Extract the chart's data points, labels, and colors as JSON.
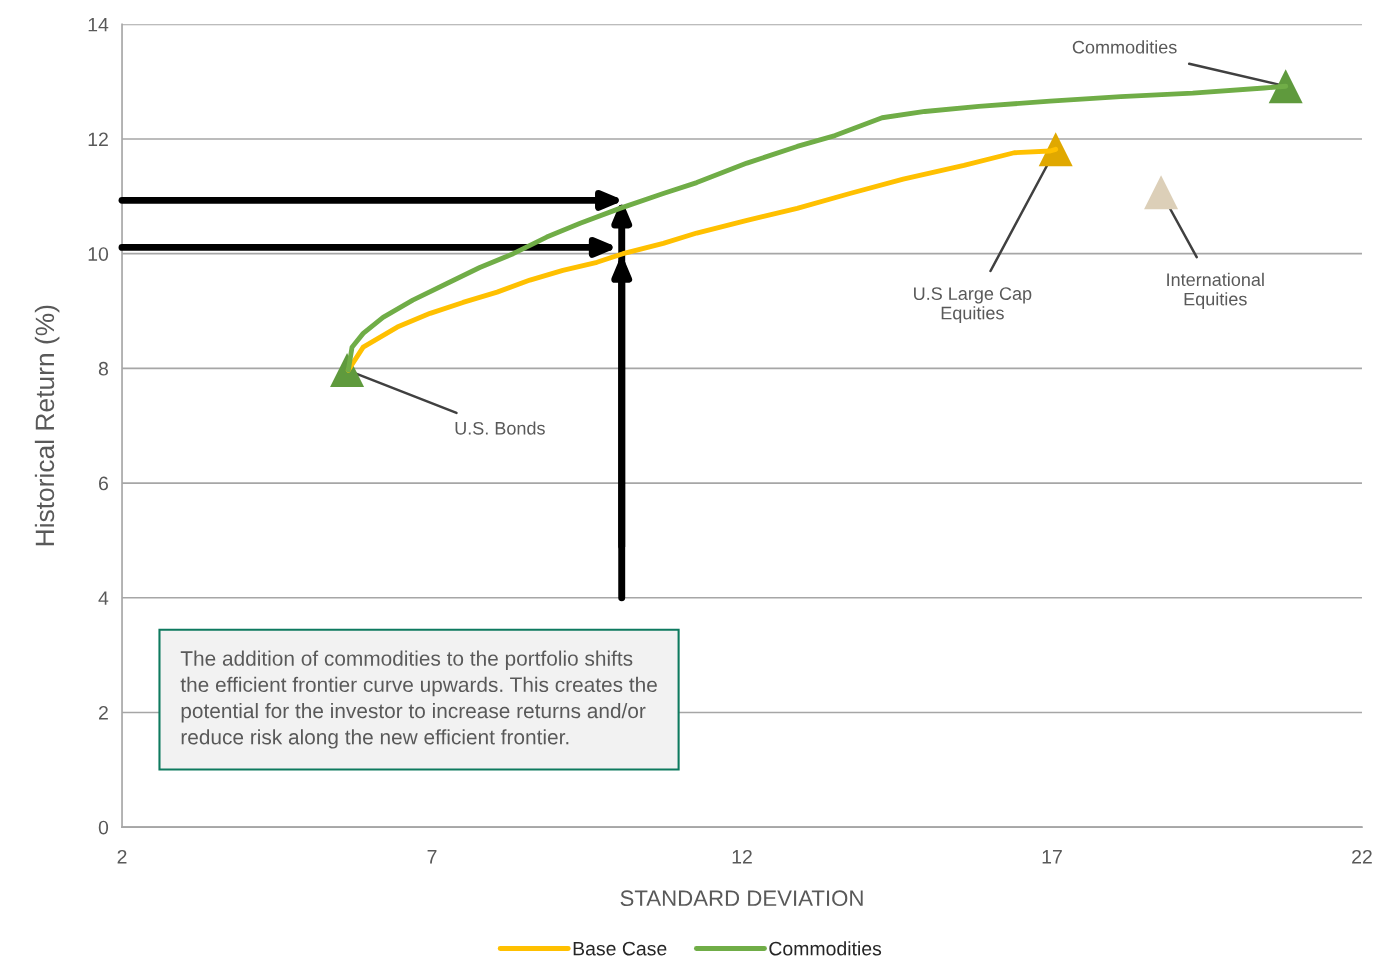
{
  "chart_data": {
    "type": "line",
    "xlabel": "STANDARD DEVIATION",
    "ylabel": "Historical Return (%)",
    "xlim": [
      2,
      22
    ],
    "xticks": [
      2,
      7,
      12,
      17,
      22
    ],
    "ylim": [
      0,
      14
    ],
    "yticks": [
      0,
      2,
      4,
      6,
      8,
      10,
      12,
      14
    ],
    "grid": "y",
    "legend": "bottom",
    "line_style": "solid",
    "series": [
      {
        "name": "Base Case",
        "color": "#ffc000",
        "x": [
          5.65,
          5.89,
          6.44,
          6.97,
          7.5,
          8.05,
          8.58,
          9.11,
          9.66,
          10.08,
          10.73,
          11.27,
          12.08,
          12.89,
          13.74,
          14.6,
          15.58,
          16.39,
          16.97,
          17.06
        ],
        "values": [
          7.97,
          8.37,
          8.72,
          8.96,
          9.15,
          9.33,
          9.54,
          9.71,
          9.85,
          10.0,
          10.18,
          10.36,
          10.58,
          10.79,
          11.05,
          11.3,
          11.54,
          11.76,
          11.79,
          11.82
        ]
      },
      {
        "name": "Commodities",
        "color": "#70ad47",
        "x": [
          5.65,
          5.71,
          5.89,
          6.21,
          6.69,
          7.24,
          7.77,
          8.31,
          8.85,
          9.39,
          10.03,
          10.73,
          11.27,
          12.08,
          12.89,
          13.5,
          14.26,
          14.95,
          15.82,
          16.97,
          18.11,
          19.27,
          20.42,
          20.77
        ],
        "values": [
          7.97,
          8.37,
          8.61,
          8.89,
          9.19,
          9.48,
          9.76,
          10.0,
          10.29,
          10.53,
          10.79,
          11.05,
          11.24,
          11.58,
          11.87,
          12.06,
          12.37,
          12.48,
          12.57,
          12.66,
          12.74,
          12.8,
          12.89,
          12.92
        ]
      },
      {
        "type": "scatter",
        "marker": "triangle",
        "x": [
          5.63,
          17.06,
          18.76,
          20.77
        ],
        "values": [
          7.97,
          11.82,
          11.07,
          12.92
        ],
        "colors": [
          "#5f9a3d",
          "#e0a800",
          "#dccfb8",
          "#5f9a3d"
        ]
      }
    ],
    "annotations": [
      {
        "text": "Commodities",
        "x": 20.77,
        "y": 12.92
      },
      {
        "text": "U.S Large Cap\nEquities",
        "x": 17.06,
        "y": 11.82
      },
      {
        "text": "International\nEquities",
        "x": 18.76,
        "y": 11.07
      },
      {
        "text": "U.S. Bonds",
        "x": 5.63,
        "y": 7.97
      },
      "The addition of commodities to the portfolio shifts\nthe efficient frontier curve upwards. This creates the\npotential for the investor to increase returns and/or\nreduce risk along the new efficient frontier."
    ]
  }
}
